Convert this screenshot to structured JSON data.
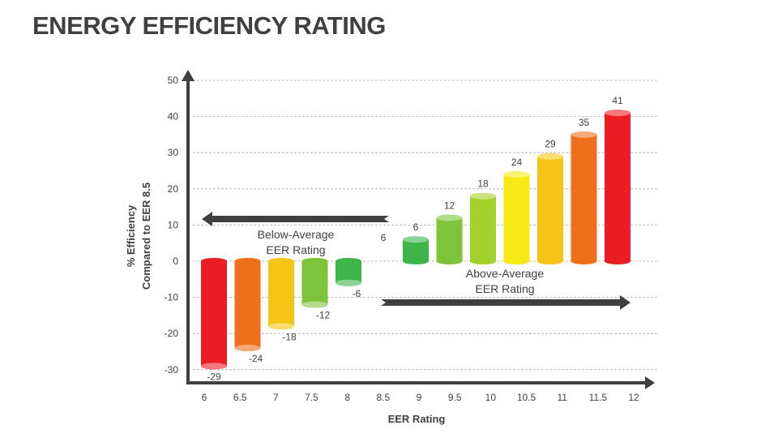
{
  "title": "ENERGY EFFICIENCY RATING",
  "chart_data": {
    "type": "bar",
    "style": "3d-cylinder",
    "xlabel": "EER Rating",
    "ylabel": [
      "% Efficiency",
      "Compared to EER 8.5"
    ],
    "ylim": [
      -30,
      50
    ],
    "yticks": [
      50,
      40,
      30,
      20,
      10,
      0,
      -10,
      -20,
      -30
    ],
    "grid": true,
    "categories": [
      "6",
      "6.5",
      "7",
      "7.5",
      "8",
      "8.5",
      "9",
      "9.5",
      "10",
      "10.5",
      "11",
      "11.5",
      "12"
    ],
    "values": [
      -29,
      -24,
      -18,
      -12,
      -6,
      null,
      6,
      12,
      18,
      24,
      29,
      35,
      41
    ],
    "colors": [
      "#ec1c24",
      "#ef6f1a",
      "#f5c414",
      "#7dc43a",
      "#3eb549",
      null,
      "#3eb549",
      "#7dc43a",
      "#a3d12b",
      "#f7e913",
      "#f5c414",
      "#ef6f1a",
      "#ec1c24"
    ],
    "annotations": [
      {
        "text": [
          "Below-Average",
          "EER Rating"
        ],
        "arrow": "left"
      },
      {
        "text": [
          "Above-Average",
          "EER Rating"
        ],
        "arrow": "right"
      },
      {
        "text": "6"
      }
    ]
  }
}
